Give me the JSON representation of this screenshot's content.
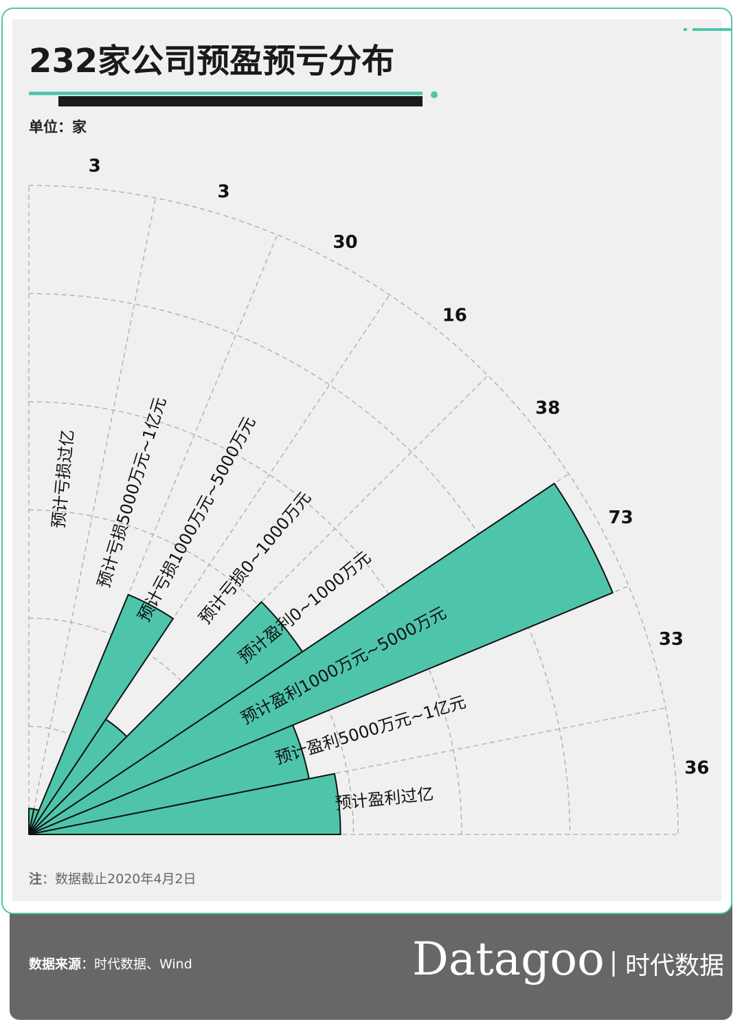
{
  "title": "232家公司预盈预亏分布",
  "unit": "单位：家",
  "chart_data": {
    "type": "polar-bar",
    "color": "#4ec5ab",
    "ylim": [
      0,
      75
    ],
    "categories": [
      "预计亏损过亿",
      "预计亏损5000万元~1亿元",
      "预计亏损1000万元~5000万元",
      "预计亏损0~1000万元",
      "预计盈利0~1000万元",
      "预计盈利1000万元~5000万元",
      "预计盈利5000万元~1亿元",
      "预计盈利过亿"
    ],
    "values": [
      3,
      3,
      30,
      16,
      38,
      73,
      33,
      36
    ]
  },
  "note_label": "注",
  "note_text": "：数据截止2020年4月2日",
  "source_label": "数据来源",
  "source_text": "：时代数据、Wind",
  "brand": "Datagoo",
  "brand_cn": "时代数据"
}
